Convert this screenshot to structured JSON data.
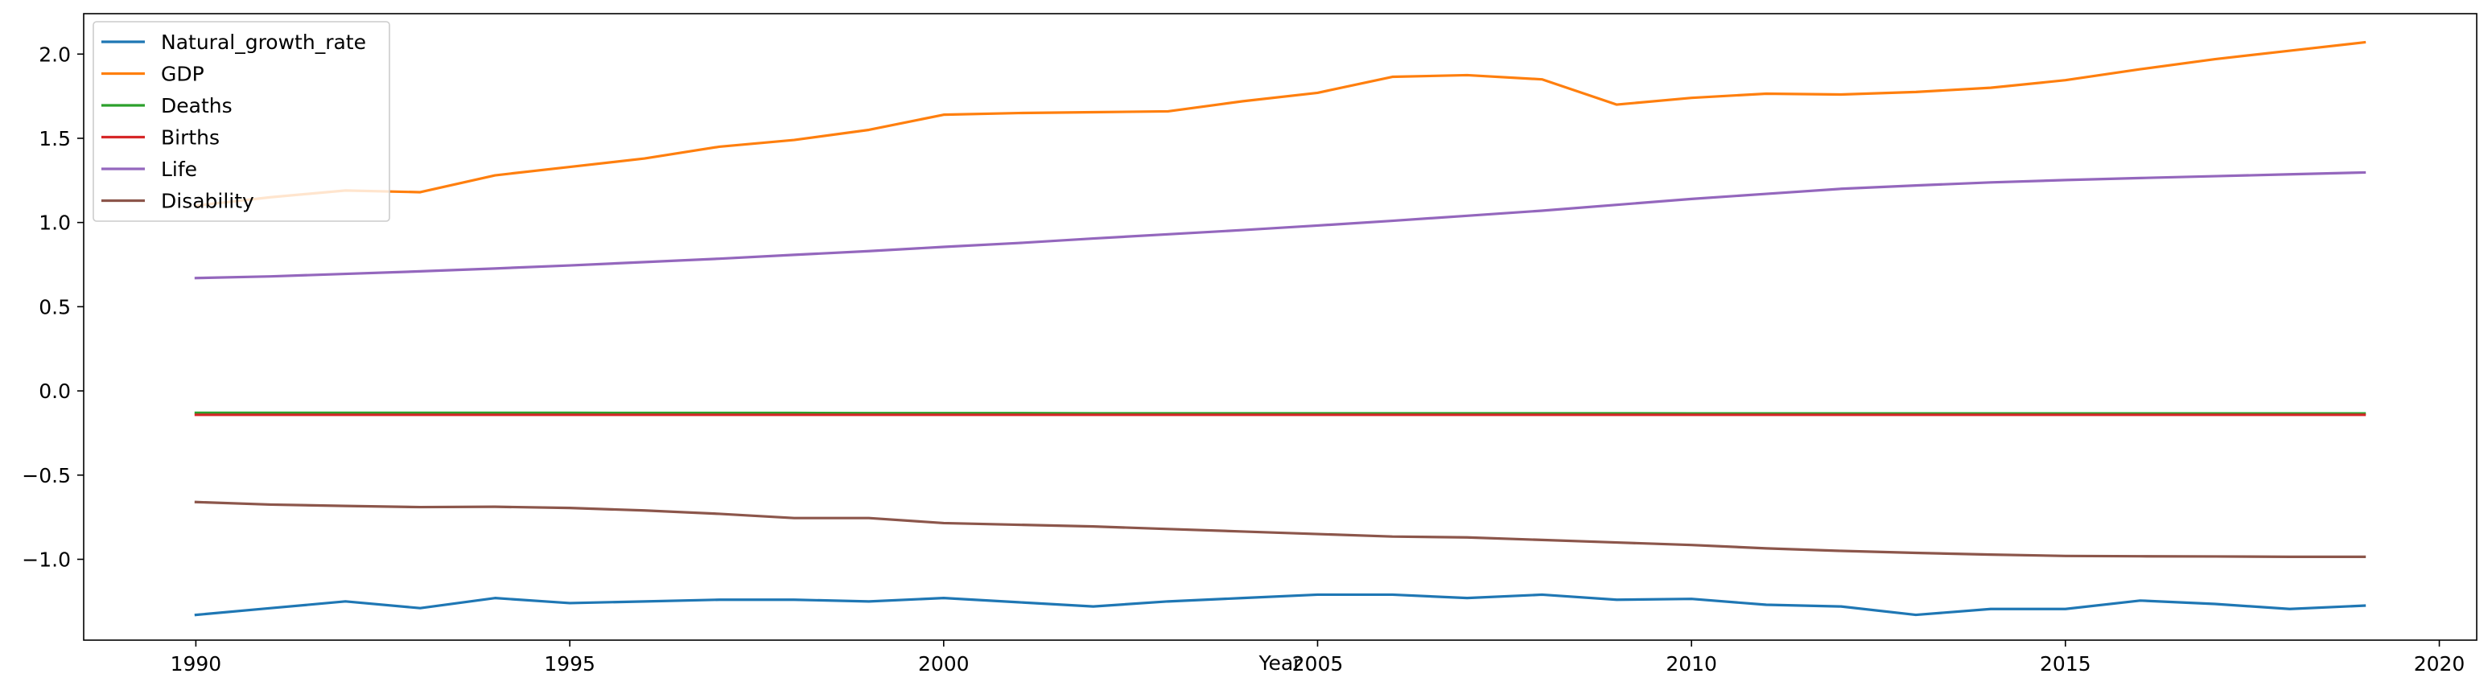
{
  "chart_data": {
    "type": "line",
    "title": "",
    "xlabel": "Year",
    "ylabel": "",
    "xlim": [
      1988.5,
      2020.5
    ],
    "ylim": [
      -1.48,
      2.24
    ],
    "x_ticks": [
      1990,
      1995,
      2000,
      2005,
      2010,
      2015,
      2020
    ],
    "x_tick_labels": [
      "1990",
      "1995",
      "2000",
      "2005",
      "2010",
      "2015",
      "2020"
    ],
    "y_ticks": [
      -1.0,
      -0.5,
      0.0,
      0.5,
      1.0,
      1.5,
      2.0
    ],
    "y_tick_labels": [
      "−1.0",
      "−0.5",
      "0.0",
      "0.5",
      "1.0",
      "1.5",
      "2.0"
    ],
    "grid": false,
    "legend_position": "top-left",
    "x": [
      1990,
      1991,
      1992,
      1993,
      1994,
      1995,
      1996,
      1997,
      1998,
      1999,
      2000,
      2001,
      2002,
      2003,
      2004,
      2005,
      2006,
      2007,
      2008,
      2009,
      2010,
      2011,
      2012,
      2013,
      2014,
      2015,
      2016,
      2017,
      2018,
      2019
    ],
    "series": [
      {
        "name": "Natural_growth_rate",
        "color": "#1f77b4",
        "values": [
          -1.33,
          -1.29,
          -1.25,
          -1.29,
          -1.23,
          -1.26,
          -1.25,
          -1.24,
          -1.24,
          -1.25,
          -1.23,
          -1.255,
          -1.28,
          -1.25,
          -1.23,
          -1.21,
          -1.21,
          -1.23,
          -1.21,
          -1.24,
          -1.235,
          -1.27,
          -1.28,
          -1.33,
          -1.295,
          -1.295,
          -1.245,
          -1.265,
          -1.295,
          -1.275
        ]
      },
      {
        "name": "GDP",
        "color": "#ff7f0e",
        "values": [
          1.1,
          1.15,
          1.19,
          1.18,
          1.28,
          1.33,
          1.38,
          1.45,
          1.49,
          1.55,
          1.64,
          1.65,
          1.655,
          1.66,
          1.72,
          1.77,
          1.865,
          1.875,
          1.85,
          1.7,
          1.74,
          1.765,
          1.76,
          1.775,
          1.8,
          1.845,
          1.91,
          1.97,
          2.02,
          2.07
        ]
      },
      {
        "name": "Deaths",
        "color": "#2ca02c",
        "values": [
          -0.13,
          -0.13,
          -0.13,
          -0.13,
          -0.13,
          -0.13,
          -0.131,
          -0.131,
          -0.131,
          -0.132,
          -0.132,
          -0.132,
          -0.133,
          -0.133,
          -0.133,
          -0.133,
          -0.133,
          -0.133,
          -0.133,
          -0.133,
          -0.134,
          -0.134,
          -0.134,
          -0.134,
          -0.134,
          -0.134,
          -0.134,
          -0.134,
          -0.134,
          -0.134
        ]
      },
      {
        "name": "Births",
        "color": "#d62728",
        "values": [
          -0.142,
          -0.142,
          -0.142,
          -0.142,
          -0.142,
          -0.142,
          -0.142,
          -0.142,
          -0.142,
          -0.142,
          -0.142,
          -0.142,
          -0.142,
          -0.142,
          -0.142,
          -0.142,
          -0.142,
          -0.142,
          -0.142,
          -0.142,
          -0.142,
          -0.142,
          -0.142,
          -0.142,
          -0.142,
          -0.142,
          -0.142,
          -0.142,
          -0.142,
          -0.142
        ]
      },
      {
        "name": "Life",
        "color": "#9467bd",
        "values": [
          0.67,
          0.68,
          0.695,
          0.71,
          0.727,
          0.745,
          0.765,
          0.785,
          0.808,
          0.83,
          0.855,
          0.878,
          0.905,
          0.93,
          0.955,
          0.982,
          1.01,
          1.04,
          1.07,
          1.105,
          1.14,
          1.17,
          1.2,
          1.22,
          1.238,
          1.252,
          1.264,
          1.275,
          1.286,
          1.297
        ]
      },
      {
        "name": "Disability",
        "color": "#8c564b",
        "values": [
          -0.66,
          -0.675,
          -0.683,
          -0.69,
          -0.688,
          -0.695,
          -0.71,
          -0.73,
          -0.755,
          -0.755,
          -0.785,
          -0.795,
          -0.805,
          -0.82,
          -0.835,
          -0.85,
          -0.865,
          -0.87,
          -0.885,
          -0.9,
          -0.915,
          -0.935,
          -0.95,
          -0.962,
          -0.972,
          -0.98,
          -0.982,
          -0.983,
          -0.985,
          -0.985
        ]
      }
    ]
  }
}
